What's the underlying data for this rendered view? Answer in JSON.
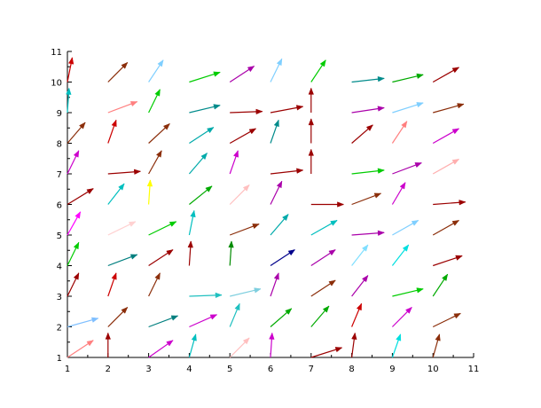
{
  "chart_data": {
    "type": "quiver",
    "title": "",
    "xlabel": "",
    "ylabel": "",
    "xlim": [
      1,
      11
    ],
    "ylim": [
      1,
      11
    ],
    "grid": false,
    "xticks": [
      "1",
      "2",
      "3",
      "4",
      "5",
      "6",
      "7",
      "8",
      "9",
      "10",
      "11"
    ],
    "yticks": [
      "1",
      "2",
      "3",
      "4",
      "5",
      "6",
      "7",
      "8",
      "9",
      "10",
      "11"
    ],
    "arrows": [
      {
        "x": 1,
        "y": 1,
        "u": 0.8,
        "v": 0.7,
        "color": "#ff7f7f"
      },
      {
        "x": 1,
        "y": 2,
        "u": 0.95,
        "v": 0.35,
        "color": "#7fbfff"
      },
      {
        "x": 1,
        "y": 3,
        "u": 0.35,
        "v": 0.95,
        "color": "#9b0000"
      },
      {
        "x": 1,
        "y": 4,
        "u": 0.35,
        "v": 0.95,
        "color": "#00cc00"
      },
      {
        "x": 1,
        "y": 5,
        "u": 0.4,
        "v": 0.95,
        "color": "#ff00ff"
      },
      {
        "x": 1,
        "y": 6,
        "u": 0.8,
        "v": 0.65,
        "color": "#9b0000"
      },
      {
        "x": 1,
        "y": 7,
        "u": 0.35,
        "v": 0.95,
        "color": "#cc00cc"
      },
      {
        "x": 1,
        "y": 8,
        "u": 0.55,
        "v": 0.85,
        "color": "#8b2e0a"
      },
      {
        "x": 1,
        "y": 9,
        "u": 0.05,
        "v": 1.0,
        "color": "#00bfbf"
      },
      {
        "x": 1,
        "y": 10,
        "u": 0.15,
        "v": 1.0,
        "color": "#cc0000"
      },
      {
        "x": 2,
        "y": 1,
        "u": 0.0,
        "v": 1.0,
        "color": "#9b0000"
      },
      {
        "x": 2,
        "y": 2,
        "u": 0.6,
        "v": 0.8,
        "color": "#8b2e0a"
      },
      {
        "x": 2,
        "y": 3,
        "u": 0.25,
        "v": 0.95,
        "color": "#cc0000"
      },
      {
        "x": 2,
        "y": 4,
        "u": 0.9,
        "v": 0.45,
        "color": "#007f7f"
      },
      {
        "x": 2,
        "y": 5,
        "u": 0.85,
        "v": 0.55,
        "color": "#ffd1d1"
      },
      {
        "x": 2,
        "y": 6,
        "u": 0.5,
        "v": 0.85,
        "color": "#00bfbf"
      },
      {
        "x": 2,
        "y": 7,
        "u": 1.0,
        "v": 0.1,
        "color": "#9b0000"
      },
      {
        "x": 2,
        "y": 8,
        "u": 0.25,
        "v": 0.95,
        "color": "#cc0000"
      },
      {
        "x": 2,
        "y": 9,
        "u": 0.9,
        "v": 0.45,
        "color": "#ff7f7f"
      },
      {
        "x": 2,
        "y": 10,
        "u": 0.6,
        "v": 0.8,
        "color": "#8b2e0a"
      },
      {
        "x": 3,
        "y": 1,
        "u": 0.75,
        "v": 0.7,
        "color": "#cc00cc"
      },
      {
        "x": 3,
        "y": 2,
        "u": 0.9,
        "v": 0.45,
        "color": "#007f7f"
      },
      {
        "x": 3,
        "y": 3,
        "u": 0.35,
        "v": 0.95,
        "color": "#8b2e0a"
      },
      {
        "x": 3,
        "y": 4,
        "u": 0.75,
        "v": 0.65,
        "color": "#9b0000"
      },
      {
        "x": 3,
        "y": 5,
        "u": 0.85,
        "v": 0.55,
        "color": "#00cc00"
      },
      {
        "x": 3,
        "y": 6,
        "u": 0.05,
        "v": 1.0,
        "color": "#ffff00"
      },
      {
        "x": 3,
        "y": 7,
        "u": 0.4,
        "v": 0.95,
        "color": "#8b2e0a"
      },
      {
        "x": 3,
        "y": 8,
        "u": 0.65,
        "v": 0.8,
        "color": "#8b2e0a"
      },
      {
        "x": 3,
        "y": 9,
        "u": 0.35,
        "v": 0.95,
        "color": "#00cc00"
      },
      {
        "x": 3,
        "y": 10,
        "u": 0.45,
        "v": 0.9,
        "color": "#7fcfff"
      },
      {
        "x": 4,
        "y": 1,
        "u": 0.2,
        "v": 0.95,
        "color": "#00bfbf"
      },
      {
        "x": 4,
        "y": 2,
        "u": 0.85,
        "v": 0.5,
        "color": "#cc00cc"
      },
      {
        "x": 4,
        "y": 3,
        "u": 1.0,
        "v": 0.05,
        "color": "#20c0c0"
      },
      {
        "x": 4,
        "y": 4,
        "u": 0.05,
        "v": 1.0,
        "color": "#9b0000"
      },
      {
        "x": 4,
        "y": 5,
        "u": 0.15,
        "v": 1.0,
        "color": "#00bfbf"
      },
      {
        "x": 4,
        "y": 6,
        "u": 0.7,
        "v": 0.75,
        "color": "#00aa00"
      },
      {
        "x": 4,
        "y": 7,
        "u": 0.55,
        "v": 0.85,
        "color": "#00aaaa"
      },
      {
        "x": 4,
        "y": 8,
        "u": 0.75,
        "v": 0.65,
        "color": "#00aaaa"
      },
      {
        "x": 4,
        "y": 9,
        "u": 0.95,
        "v": 0.3,
        "color": "#008b8b"
      },
      {
        "x": 4,
        "y": 10,
        "u": 0.95,
        "v": 0.4,
        "color": "#00cc00"
      },
      {
        "x": 5,
        "y": 1,
        "u": 0.6,
        "v": 0.8,
        "color": "#ffbfbf"
      },
      {
        "x": 5,
        "y": 2,
        "u": 0.3,
        "v": 0.95,
        "color": "#20c0c0"
      },
      {
        "x": 5,
        "y": 3,
        "u": 0.95,
        "v": 0.3,
        "color": "#7fcfdf"
      },
      {
        "x": 5,
        "y": 4,
        "u": 0.05,
        "v": 1.0,
        "color": "#008b00"
      },
      {
        "x": 5,
        "y": 5,
        "u": 0.9,
        "v": 0.45,
        "color": "#8b2e0a"
      },
      {
        "x": 5,
        "y": 6,
        "u": 0.6,
        "v": 0.8,
        "color": "#ffbfbf"
      },
      {
        "x": 5,
        "y": 7,
        "u": 0.25,
        "v": 0.95,
        "color": "#cc00cc"
      },
      {
        "x": 5,
        "y": 8,
        "u": 0.8,
        "v": 0.6,
        "color": "#9b0000"
      },
      {
        "x": 5,
        "y": 9,
        "u": 1.0,
        "v": 0.05,
        "color": "#9b0000"
      },
      {
        "x": 5,
        "y": 10,
        "u": 0.75,
        "v": 0.65,
        "color": "#aa00aa"
      },
      {
        "x": 6,
        "y": 1,
        "u": 0.05,
        "v": 1.0,
        "color": "#cc00cc"
      },
      {
        "x": 6,
        "y": 2,
        "u": 0.65,
        "v": 0.75,
        "color": "#00aa00"
      },
      {
        "x": 6,
        "y": 3,
        "u": 0.25,
        "v": 0.95,
        "color": "#aa00aa"
      },
      {
        "x": 6,
        "y": 4,
        "u": 0.75,
        "v": 0.65,
        "color": "#00008b"
      },
      {
        "x": 6,
        "y": 5,
        "u": 0.55,
        "v": 0.85,
        "color": "#00aaaa"
      },
      {
        "x": 6,
        "y": 6,
        "u": 0.35,
        "v": 0.95,
        "color": "#aa00aa"
      },
      {
        "x": 6,
        "y": 7,
        "u": 1.0,
        "v": 0.15,
        "color": "#9b0000"
      },
      {
        "x": 6,
        "y": 8,
        "u": 0.25,
        "v": 0.95,
        "color": "#008b8b"
      },
      {
        "x": 6,
        "y": 9,
        "u": 1.0,
        "v": 0.25,
        "color": "#9b0000"
      },
      {
        "x": 6,
        "y": 10,
        "u": 0.35,
        "v": 0.95,
        "color": "#7fcfff"
      },
      {
        "x": 7,
        "y": 1,
        "u": 0.95,
        "v": 0.4,
        "color": "#9b0000"
      },
      {
        "x": 7,
        "y": 2,
        "u": 0.55,
        "v": 0.85,
        "color": "#00aa00"
      },
      {
        "x": 7,
        "y": 3,
        "u": 0.75,
        "v": 0.65,
        "color": "#8b2e0a"
      },
      {
        "x": 7,
        "y": 4,
        "u": 0.75,
        "v": 0.65,
        "color": "#aa00aa"
      },
      {
        "x": 7,
        "y": 5,
        "u": 0.8,
        "v": 0.6,
        "color": "#00bfbf"
      },
      {
        "x": 7,
        "y": 6,
        "u": 1.0,
        "v": 0.0,
        "color": "#9b0000"
      },
      {
        "x": 7,
        "y": 7,
        "u": 0.0,
        "v": 1.0,
        "color": "#9b0000"
      },
      {
        "x": 7,
        "y": 8,
        "u": 0.0,
        "v": 1.0,
        "color": "#9b0000"
      },
      {
        "x": 7,
        "y": 9,
        "u": 0.0,
        "v": 1.0,
        "color": "#9b0000"
      },
      {
        "x": 7,
        "y": 10,
        "u": 0.45,
        "v": 0.9,
        "color": "#00cc00"
      },
      {
        "x": 8,
        "y": 1,
        "u": 0.1,
        "v": 1.0,
        "color": "#9b0000"
      },
      {
        "x": 8,
        "y": 2,
        "u": 0.3,
        "v": 0.95,
        "color": "#cc0000"
      },
      {
        "x": 8,
        "y": 3,
        "u": 0.5,
        "v": 0.85,
        "color": "#aa00aa"
      },
      {
        "x": 8,
        "y": 4,
        "u": 0.5,
        "v": 0.85,
        "color": "#7fdfff"
      },
      {
        "x": 8,
        "y": 5,
        "u": 1.0,
        "v": 0.1,
        "color": "#aa00aa"
      },
      {
        "x": 8,
        "y": 6,
        "u": 0.9,
        "v": 0.45,
        "color": "#8b2e0a"
      },
      {
        "x": 8,
        "y": 7,
        "u": 1.0,
        "v": 0.15,
        "color": "#00cc00"
      },
      {
        "x": 8,
        "y": 8,
        "u": 0.65,
        "v": 0.75,
        "color": "#9b0000"
      },
      {
        "x": 8,
        "y": 9,
        "u": 1.0,
        "v": 0.2,
        "color": "#aa00aa"
      },
      {
        "x": 8,
        "y": 10,
        "u": 1.0,
        "v": 0.15,
        "color": "#008b8b"
      },
      {
        "x": 9,
        "y": 1,
        "u": 0.25,
        "v": 0.95,
        "color": "#00dfdf"
      },
      {
        "x": 9,
        "y": 2,
        "u": 0.6,
        "v": 0.8,
        "color": "#cc00cc"
      },
      {
        "x": 9,
        "y": 3,
        "u": 0.95,
        "v": 0.3,
        "color": "#00cc00"
      },
      {
        "x": 9,
        "y": 4,
        "u": 0.5,
        "v": 0.85,
        "color": "#00dfdf"
      },
      {
        "x": 9,
        "y": 5,
        "u": 0.8,
        "v": 0.6,
        "color": "#7fcfff"
      },
      {
        "x": 9,
        "y": 6,
        "u": 0.4,
        "v": 0.9,
        "color": "#cc00cc"
      },
      {
        "x": 9,
        "y": 7,
        "u": 0.9,
        "v": 0.45,
        "color": "#aa00aa"
      },
      {
        "x": 9,
        "y": 8,
        "u": 0.45,
        "v": 0.9,
        "color": "#ff7f7f"
      },
      {
        "x": 9,
        "y": 9,
        "u": 0.95,
        "v": 0.4,
        "color": "#7fcfff"
      },
      {
        "x": 9,
        "y": 10,
        "u": 0.95,
        "v": 0.3,
        "color": "#00aa00"
      },
      {
        "x": 10,
        "y": 1,
        "u": 0.2,
        "v": 0.95,
        "color": "#8b2e0a"
      },
      {
        "x": 10,
        "y": 2,
        "u": 0.85,
        "v": 0.55,
        "color": "#8b2e0a"
      },
      {
        "x": 10,
        "y": 3,
        "u": 0.45,
        "v": 0.9,
        "color": "#00aa00"
      },
      {
        "x": 10,
        "y": 4,
        "u": 0.9,
        "v": 0.4,
        "color": "#9b0000"
      },
      {
        "x": 10,
        "y": 5,
        "u": 0.8,
        "v": 0.6,
        "color": "#8b2e0a"
      },
      {
        "x": 10,
        "y": 6,
        "u": 1.0,
        "v": 0.1,
        "color": "#9b0000"
      },
      {
        "x": 10,
        "y": 7,
        "u": 0.8,
        "v": 0.6,
        "color": "#ffafaf"
      },
      {
        "x": 10,
        "y": 8,
        "u": 0.8,
        "v": 0.6,
        "color": "#cc00cc"
      },
      {
        "x": 10,
        "y": 9,
        "u": 0.95,
        "v": 0.35,
        "color": "#8b2e0a"
      },
      {
        "x": 10,
        "y": 10,
        "u": 0.8,
        "v": 0.6,
        "color": "#9b0000"
      }
    ]
  }
}
